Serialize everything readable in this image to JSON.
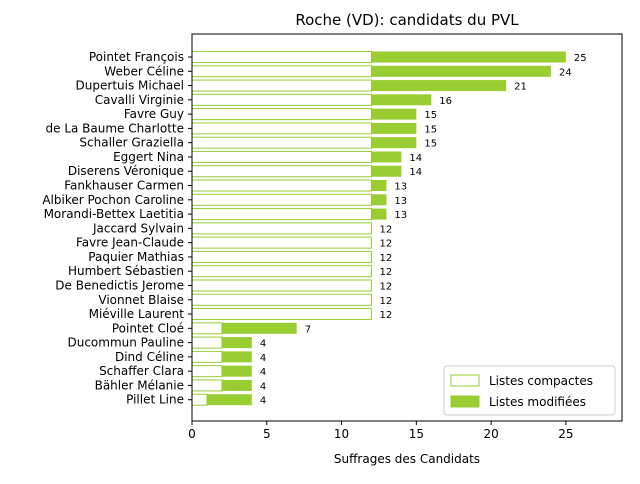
{
  "chart_data": {
    "type": "bar",
    "orientation": "horizontal",
    "stacked": true,
    "title": "Roche (VD): candidats du PVL",
    "xlabel": "Suffrages des Candidats",
    "ylabel": "",
    "xlim": [
      0,
      28.75
    ],
    "xticks": [
      0,
      5,
      10,
      15,
      20,
      25
    ],
    "categories": [
      "Pointet François",
      "Weber Céline",
      "Dupertuis Michael",
      "Cavalli Virginie",
      "Favre Guy",
      "de La Baume Charlotte",
      "Schaller Graziella",
      "Eggert Nina",
      "Diserens Véronique",
      "Fankhauser Carmen",
      "Albiker Pochon Caroline",
      "Morandi-Bettex Laetitia",
      "Jaccard Sylvain",
      "Favre Jean-Claude",
      "Paquier Mathias",
      "Humbert Sébastien",
      "De Benedictis Jerome",
      "Vionnet Blaise",
      "Miéville Laurent",
      "Pointet Cloé",
      "Ducommun Pauline",
      "Dind Céline",
      "Schaffer Clara",
      "Bähler Mélanie",
      "Pillet Line"
    ],
    "series": [
      {
        "name": "Listes compactes",
        "color": "#9acd32",
        "style": "outline",
        "values": [
          12,
          12,
          12,
          12,
          12,
          12,
          12,
          12,
          12,
          12,
          12,
          12,
          12,
          12,
          12,
          12,
          12,
          12,
          12,
          2,
          2,
          2,
          2,
          2,
          1
        ]
      },
      {
        "name": "Listes modifiées",
        "color": "#9acd32",
        "style": "filled",
        "values": [
          13,
          12,
          9,
          4,
          3,
          3,
          3,
          2,
          2,
          1,
          1,
          1,
          0,
          0,
          0,
          0,
          0,
          0,
          0,
          5,
          2,
          2,
          2,
          2,
          3
        ]
      }
    ],
    "totals": [
      25,
      24,
      21,
      16,
      15,
      15,
      15,
      14,
      14,
      13,
      13,
      13,
      12,
      12,
      12,
      12,
      12,
      12,
      12,
      7,
      4,
      4,
      4,
      4,
      4
    ],
    "legend_position": "bottom-right",
    "grid": false
  }
}
